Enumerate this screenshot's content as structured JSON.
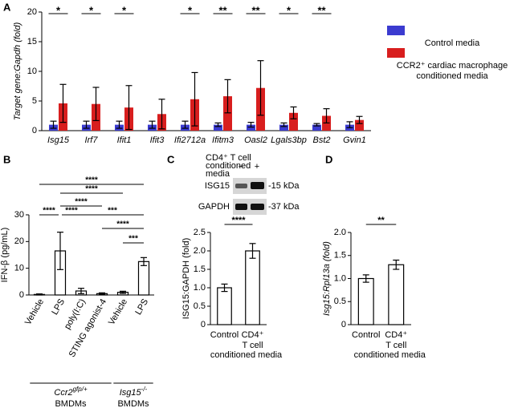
{
  "chart_data": [
    {
      "panel": "A",
      "type": "bar",
      "ylabel": "Target gene:Gapdh (fold)",
      "categories": [
        "Isg15",
        "Irf7",
        "Ifit1",
        "Ifit3",
        "Ifi2712a",
        "Ifitm3",
        "Oasl2",
        "Lgals3bp",
        "Bst2",
        "Gvin1"
      ],
      "series": [
        {
          "name": "Control media",
          "color": "#3b3bd0",
          "values": [
            1.0,
            1.0,
            1.0,
            1.0,
            1.0,
            1.0,
            1.0,
            1.0,
            1.0,
            1.0
          ],
          "errors": [
            0.6,
            0.6,
            0.6,
            0.6,
            0.6,
            0.3,
            0.4,
            0.3,
            0.2,
            0.5
          ]
        },
        {
          "name": "CCR2⁺ cardiac macrophage conditioned media",
          "color": "#d81e1e",
          "values": [
            4.6,
            4.5,
            3.9,
            2.8,
            5.3,
            5.8,
            7.2,
            3.0,
            2.5,
            1.8
          ],
          "errors": [
            3.2,
            2.8,
            3.7,
            2.5,
            4.5,
            2.8,
            4.6,
            1.0,
            1.2,
            0.6
          ]
        }
      ],
      "significance": [
        "*",
        "*",
        "*",
        null,
        "*",
        "**",
        "**",
        "*",
        "**",
        null
      ],
      "ylim": [
        0,
        20
      ],
      "yticks": [
        0,
        5,
        10,
        15,
        20
      ]
    },
    {
      "panel": "B",
      "type": "bar",
      "ylabel": "IFN-β (pg/mL)",
      "color": "#ffffff",
      "categories": [
        "Vehicle",
        "LPS",
        "poly(I:C)",
        "STING agonist-4",
        "Vehicle",
        "LPS"
      ],
      "values": [
        0.2,
        16.5,
        1.5,
        0.5,
        1.0,
        12.5
      ],
      "errors": [
        0.2,
        7.0,
        1.0,
        0.3,
        0.4,
        1.5
      ],
      "ylim": [
        0,
        30
      ],
      "yticks": [
        0,
        10,
        20,
        30
      ],
      "comparisons": [
        {
          "from": 0,
          "to": 5,
          "label": "****"
        },
        {
          "from": 1,
          "to": 4,
          "label": "****"
        },
        {
          "from": 1,
          "to": 3,
          "label": "****"
        },
        {
          "from": 0,
          "to": 1,
          "label": "****"
        },
        {
          "from": 1,
          "to": 2,
          "label": "****"
        },
        {
          "from": 2,
          "to": 5,
          "label": "***"
        },
        {
          "from": 3,
          "to": 5,
          "label": "****"
        },
        {
          "from": 4,
          "to": 5,
          "label": "***"
        }
      ],
      "groups": [
        {
          "gene": "Ccr2",
          "genotype": "gfp/+",
          "cells": "BMDMs"
        },
        {
          "gene": "Isg15",
          "genotype": "-/-",
          "cells": "BMDMs"
        }
      ]
    },
    {
      "panel": "C",
      "type": "bar",
      "ylabel": "ISG15:GAPDH (fold)",
      "color": "#ffffff",
      "categories": [
        "Control",
        "CD4⁺"
      ],
      "xlabel_lines": [
        "T cell",
        "conditioned media"
      ],
      "values": [
        1.0,
        2.0
      ],
      "errors": [
        0.1,
        0.2
      ],
      "comparison_label": "****",
      "ylim": [
        0,
        2.5
      ],
      "yticks": [
        0,
        0.5,
        {
          "value": 1,
          "label": "1.0"
        },
        1.5,
        {
          "value": 2,
          "label": "2.0"
        },
        2.5
      ],
      "blot": {
        "header": [
          "CD4⁺ T cell",
          "conditioned",
          "media"
        ],
        "lanes": [
          "−",
          "+"
        ],
        "bands": [
          {
            "name": "ISG15",
            "size": "-15 kDa"
          },
          {
            "name": "GAPDH",
            "size": "-37 kDa"
          }
        ]
      }
    },
    {
      "panel": "D",
      "type": "bar",
      "ylabel": "Isg15:Rpl13a (fold)",
      "color": "#ffffff",
      "categories": [
        "Control",
        "CD4⁺"
      ],
      "xlabel_lines": [
        "T cell",
        "conditioned media"
      ],
      "values": [
        1.0,
        1.3
      ],
      "errors": [
        0.08,
        0.1
      ],
      "comparison_label": "**",
      "ylim": [
        0,
        2.0
      ],
      "yticks": [
        0,
        0.5,
        {
          "value": 1,
          "label": "1.0"
        },
        1.5,
        {
          "value": 2,
          "label": "2.0"
        }
      ]
    }
  ]
}
